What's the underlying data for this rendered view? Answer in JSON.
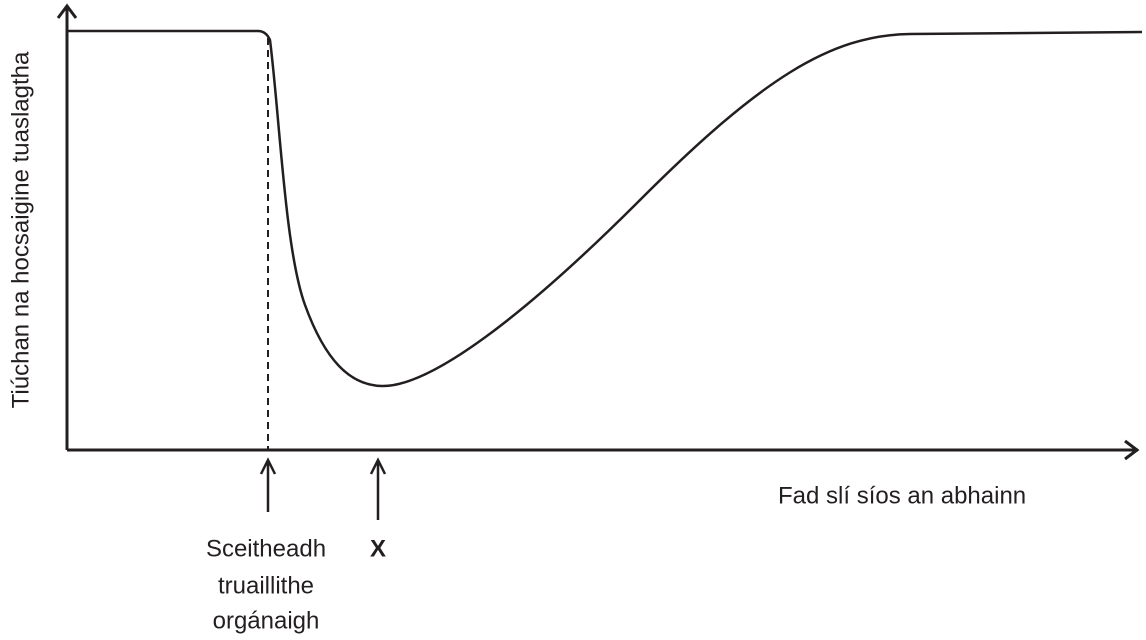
{
  "axes": {
    "y_label": "Tiúchan na hocsaigine tuaslagtha",
    "x_label": "Fad slí síos an abhainn"
  },
  "annotations": [
    {
      "lines": [
        "Sceitheadh",
        "truaillithe",
        "orgánaigh"
      ]
    },
    {
      "lines": [
        "X"
      ]
    }
  ]
}
